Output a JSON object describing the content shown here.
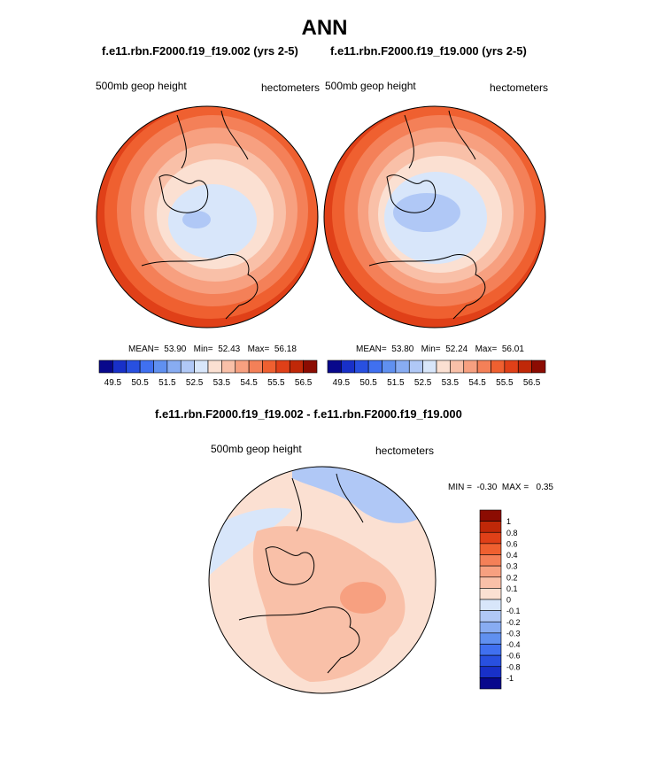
{
  "title": "ANN",
  "chart_data": [
    {
      "type": "heatmap",
      "projection": "north-polar-stereographic",
      "title": "f.e11.rbn.F2000.f19_f19.002 (yrs 2-5)",
      "left_label": "500mb geop height",
      "right_label": "hectometers",
      "stats": {
        "mean_label": "MEAN=",
        "mean": "53.90",
        "min_label": "Min=",
        "min": "52.43",
        "max_label": "Max=",
        "max": "56.18"
      },
      "colorbar": {
        "orientation": "horizontal",
        "ticks": [
          "49.5",
          "50.5",
          "51.5",
          "52.5",
          "53.5",
          "54.5",
          "55.5",
          "56.5"
        ],
        "levels": [
          49.5,
          50.0,
          50.5,
          51.0,
          51.5,
          52.0,
          52.5,
          53.0,
          53.5,
          54.0,
          54.5,
          55.0,
          55.5,
          56.0,
          56.5
        ],
        "colors": [
          "#08088c",
          "#1830c8",
          "#2850e0",
          "#4070f0",
          "#6090f0",
          "#88acf2",
          "#b0c8f6",
          "#d8e6fa",
          "#fbe0d2",
          "#f9c0a8",
          "#f7a080",
          "#f48058",
          "#ef6030",
          "#e04018",
          "#c02808",
          "#8c0c02"
        ]
      }
    },
    {
      "type": "heatmap",
      "projection": "north-polar-stereographic",
      "title": "f.e11.rbn.F2000.f19_f19.000 (yrs 2-5)",
      "left_label": "500mb geop height",
      "right_label": "hectometers",
      "stats": {
        "mean_label": "MEAN=",
        "mean": "53.80",
        "min_label": "Min=",
        "min": "52.24",
        "max_label": "Max=",
        "max": "56.01"
      },
      "colorbar": {
        "orientation": "horizontal",
        "ticks": [
          "49.5",
          "50.5",
          "51.5",
          "52.5",
          "53.5",
          "54.5",
          "55.5",
          "56.5"
        ],
        "levels": [
          49.5,
          50.0,
          50.5,
          51.0,
          51.5,
          52.0,
          52.5,
          53.0,
          53.5,
          54.0,
          54.5,
          55.0,
          55.5,
          56.0,
          56.5
        ],
        "colors": [
          "#08088c",
          "#1830c8",
          "#2850e0",
          "#4070f0",
          "#6090f0",
          "#88acf2",
          "#b0c8f6",
          "#d8e6fa",
          "#fbe0d2",
          "#f9c0a8",
          "#f7a080",
          "#f48058",
          "#ef6030",
          "#e04018",
          "#c02808",
          "#8c0c02"
        ]
      }
    },
    {
      "type": "heatmap",
      "projection": "north-polar-stereographic",
      "title": "f.e11.rbn.F2000.f19_f19.002 - f.e11.rbn.F2000.f19_f19.000",
      "left_label": "500mb geop height",
      "right_label": "hectometers",
      "stats": {
        "min_label": "MIN =",
        "min": "-0.30",
        "max_label": "MAX =",
        "max": "0.35"
      },
      "colorbar": {
        "orientation": "vertical",
        "ticks": [
          "1",
          "0.8",
          "0.6",
          "0.4",
          "0.3",
          "0.2",
          "0.1",
          "0",
          "-0.1",
          "-0.2",
          "-0.3",
          "-0.4",
          "-0.6",
          "-0.8",
          "-1"
        ],
        "colors": [
          "#8c0c02",
          "#c02808",
          "#e04018",
          "#ef6030",
          "#f48058",
          "#f7a080",
          "#f9c0a8",
          "#fbe0d2",
          "#d8e6fa",
          "#b0c8f6",
          "#88acf2",
          "#6090f0",
          "#4070f0",
          "#2850e0",
          "#1830c8",
          "#08088c"
        ]
      }
    }
  ]
}
